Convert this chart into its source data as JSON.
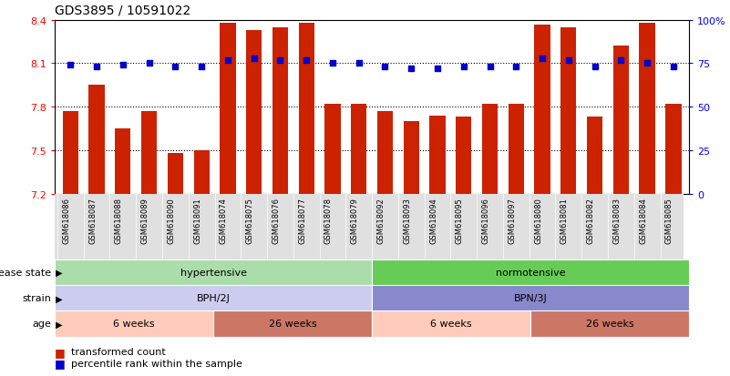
{
  "title": "GDS3895 / 10591022",
  "samples": [
    "GSM618086",
    "GSM618087",
    "GSM618088",
    "GSM618089",
    "GSM618090",
    "GSM618091",
    "GSM618074",
    "GSM618075",
    "GSM618076",
    "GSM618077",
    "GSM618078",
    "GSM618079",
    "GSM618092",
    "GSM618093",
    "GSM618094",
    "GSM618095",
    "GSM618096",
    "GSM618097",
    "GSM618080",
    "GSM618081",
    "GSM618082",
    "GSM618083",
    "GSM618084",
    "GSM618085"
  ],
  "red_values": [
    7.77,
    7.95,
    7.65,
    7.77,
    7.48,
    7.5,
    8.38,
    8.33,
    8.35,
    8.38,
    7.82,
    7.82,
    7.77,
    7.7,
    7.74,
    7.73,
    7.82,
    7.82,
    8.37,
    8.35,
    7.73,
    8.22,
    8.38,
    7.82
  ],
  "blue_values": [
    74,
    73,
    74,
    75,
    73,
    73,
    77,
    78,
    77,
    77,
    75,
    75,
    73,
    72,
    72,
    73,
    73,
    73,
    78,
    77,
    73,
    77,
    75,
    73
  ],
  "ymin": 7.2,
  "ymax": 8.4,
  "yticks": [
    7.2,
    7.5,
    7.8,
    8.1,
    8.4
  ],
  "right_yticks": [
    0,
    25,
    50,
    75,
    100
  ],
  "bar_color": "#cc2200",
  "dot_color": "#0000cc",
  "disease_state_groups": [
    {
      "label": "hypertensive",
      "start": 0,
      "end": 12,
      "color": "#aaddaa"
    },
    {
      "label": "normotensive",
      "start": 12,
      "end": 24,
      "color": "#66cc55"
    }
  ],
  "strain_groups": [
    {
      "label": "BPH/2J",
      "start": 0,
      "end": 12,
      "color": "#ccccee"
    },
    {
      "label": "BPN/3J",
      "start": 12,
      "end": 24,
      "color": "#8888cc"
    }
  ],
  "age_groups": [
    {
      "label": "6 weeks",
      "start": 0,
      "end": 6,
      "color": "#ffccbb"
    },
    {
      "label": "26 weeks",
      "start": 6,
      "end": 12,
      "color": "#cc7766"
    },
    {
      "label": "6 weeks",
      "start": 12,
      "end": 18,
      "color": "#ffccbb"
    },
    {
      "label": "26 weeks",
      "start": 18,
      "end": 24,
      "color": "#cc7766"
    }
  ],
  "row_labels": [
    "disease state",
    "strain",
    "age"
  ],
  "dotted_lines": [
    7.5,
    7.8,
    8.1
  ],
  "figsize": [
    8.01,
    4.14
  ],
  "dpi": 100
}
